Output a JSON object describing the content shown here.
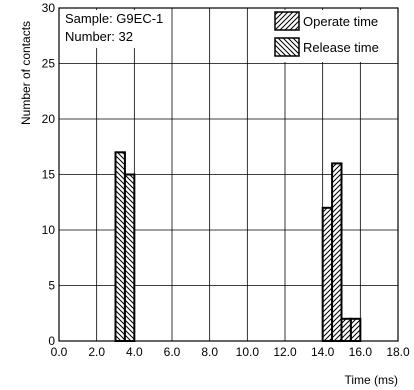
{
  "chart_data": {
    "type": "bar",
    "title": "",
    "xlabel": "Time (ms)",
    "ylabel": "Number of contacts",
    "xlim": [
      0,
      18
    ],
    "ylim": [
      0,
      30
    ],
    "x_ticks": [
      "0.0",
      "2.0",
      "4.0",
      "6.0",
      "8.0",
      "10.0",
      "12.0",
      "14.0",
      "16.0",
      "18.0"
    ],
    "y_ticks": [
      "0",
      "5",
      "10",
      "15",
      "20",
      "25",
      "30"
    ],
    "grid": true,
    "annotations": [
      "Sample: G9EC-1",
      "Number: 32"
    ],
    "legend_position": "top-right",
    "bin_width": 0.5,
    "series": [
      {
        "name": "Operate time",
        "hatch": "forward-diagonal",
        "bars": [
          {
            "x": 14.0,
            "value": 12
          },
          {
            "x": 14.5,
            "value": 16
          },
          {
            "x": 15.0,
            "value": 2
          },
          {
            "x": 15.5,
            "value": 2
          }
        ]
      },
      {
        "name": "Release time",
        "hatch": "back-diagonal",
        "bars": [
          {
            "x": 3.0,
            "value": 17
          },
          {
            "x": 3.5,
            "value": 15
          }
        ]
      }
    ]
  }
}
